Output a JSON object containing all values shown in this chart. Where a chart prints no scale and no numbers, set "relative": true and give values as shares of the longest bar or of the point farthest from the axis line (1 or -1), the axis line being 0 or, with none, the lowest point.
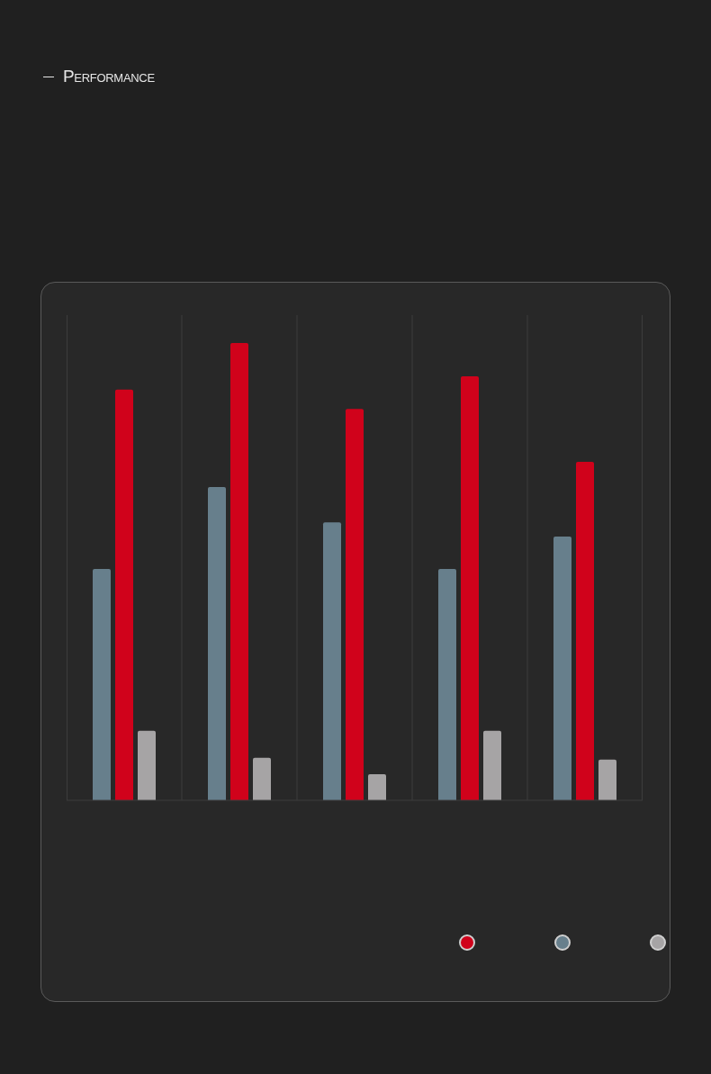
{
  "chart_data": {
    "type": "bar",
    "title": "Performance",
    "relative": true,
    "categories": [
      null,
      null,
      null,
      null,
      null
    ],
    "series": [
      {
        "color": "#677f8c",
        "values": [
          0.506,
          0.685,
          0.608,
          0.506,
          0.577
        ]
      },
      {
        "color": "#d0021b",
        "values": [
          0.898,
          1,
          0.856,
          0.927,
          0.74
        ]
      },
      {
        "color": "#a6a4a5",
        "values": [
          0.152,
          0.093,
          0.057,
          0.152,
          0.089
        ]
      }
    ],
    "grid": "x"
  }
}
